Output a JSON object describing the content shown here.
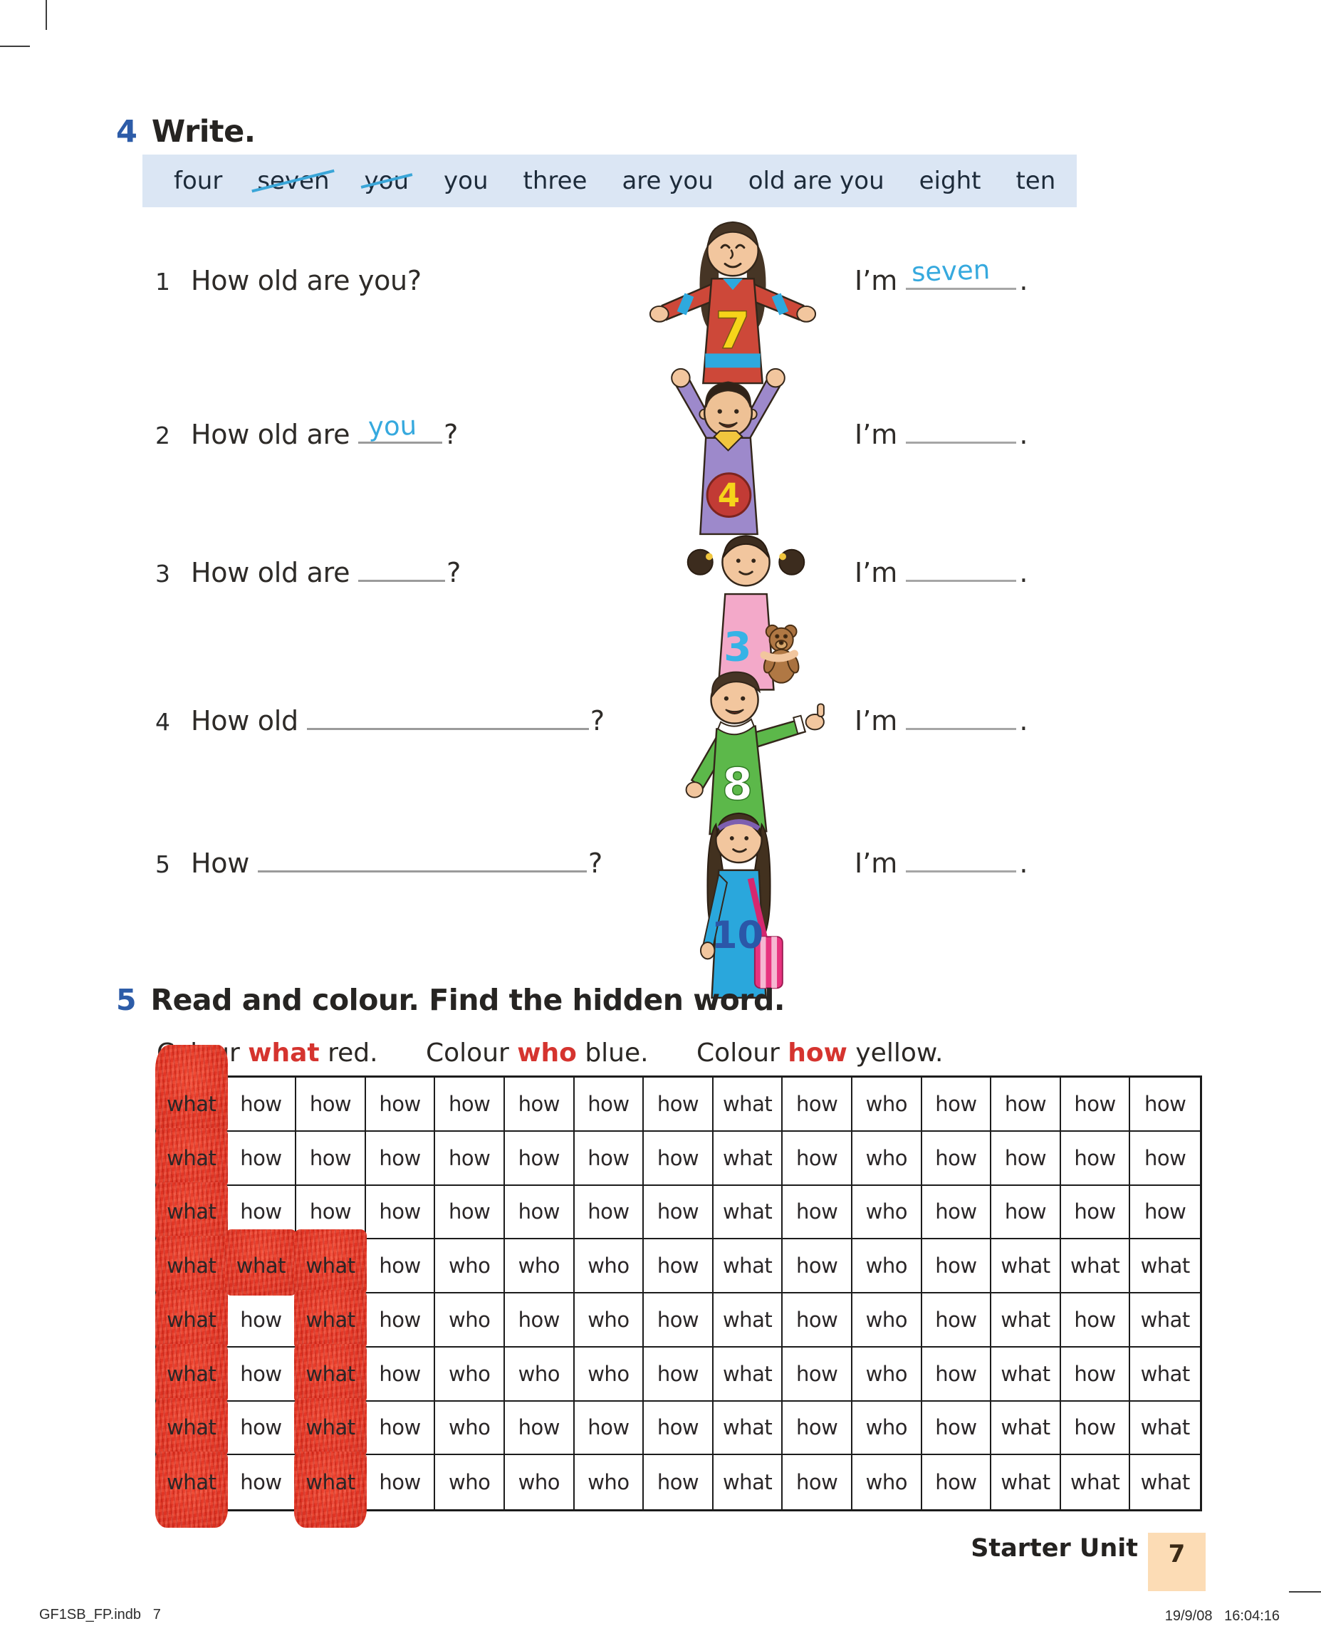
{
  "exercise4": {
    "number": "4",
    "title": "Write.",
    "word_bank": [
      {
        "text": "four",
        "struck": false
      },
      {
        "text": "seven",
        "struck": true
      },
      {
        "text": "you",
        "struck": true
      },
      {
        "text": "you",
        "struck": false
      },
      {
        "text": "three",
        "struck": false
      },
      {
        "text": "are you",
        "struck": false
      },
      {
        "text": "old are you",
        "struck": false
      },
      {
        "text": "eight",
        "struck": false
      },
      {
        "text": "ten",
        "struck": false
      }
    ],
    "answer_prefix": "I’m",
    "answer_period": ".",
    "questions": [
      {
        "num": "1",
        "before": "How old are you?",
        "gap_text": "",
        "after": "",
        "answer": "seven",
        "shirt_number": "7",
        "kid": "girl-red-jersey"
      },
      {
        "num": "2",
        "before": "How old are",
        "gap_text": "you",
        "after": "?",
        "answer": "",
        "shirt_number": "4",
        "kid": "boy-purple-shirt-arms-up"
      },
      {
        "num": "3",
        "before": "How old are",
        "gap_text": "",
        "after": "?",
        "answer": "",
        "shirt_number": "3",
        "kid": "girl-pink-shirt-teddy-bear"
      },
      {
        "num": "4",
        "before": "How old",
        "gap_text": "",
        "after": "?",
        "answer": "",
        "shirt_number": "8",
        "kid": "boy-green-shirt"
      },
      {
        "num": "5",
        "before": "How",
        "gap_text": "",
        "after": "?",
        "answer": "",
        "shirt_number": "10",
        "kid": "girl-blue-shirt-pink-bag"
      }
    ]
  },
  "exercise5": {
    "number": "5",
    "title": "Read and colour. Find the hidden word.",
    "instructions": [
      {
        "pre": "Colour ",
        "word": "what",
        "post": " red."
      },
      {
        "pre": "Colour ",
        "word": "who",
        "post": " blue."
      },
      {
        "pre": "Colour ",
        "word": "how",
        "post": " yellow."
      }
    ],
    "grid_rows": [
      [
        "what",
        "how",
        "how",
        "how",
        "how",
        "how",
        "how",
        "how",
        "what",
        "how",
        "who",
        "how",
        "how",
        "how",
        "how"
      ],
      [
        "what",
        "how",
        "how",
        "how",
        "how",
        "how",
        "how",
        "how",
        "what",
        "how",
        "who",
        "how",
        "how",
        "how",
        "how"
      ],
      [
        "what",
        "how",
        "how",
        "how",
        "how",
        "how",
        "how",
        "how",
        "what",
        "how",
        "who",
        "how",
        "how",
        "how",
        "how"
      ],
      [
        "what",
        "what",
        "what",
        "how",
        "who",
        "who",
        "who",
        "how",
        "what",
        "how",
        "who",
        "how",
        "what",
        "what",
        "what"
      ],
      [
        "what",
        "how",
        "what",
        "how",
        "who",
        "how",
        "who",
        "how",
        "what",
        "how",
        "who",
        "how",
        "what",
        "how",
        "what"
      ],
      [
        "what",
        "how",
        "what",
        "how",
        "who",
        "who",
        "who",
        "how",
        "what",
        "how",
        "who",
        "how",
        "what",
        "how",
        "what"
      ],
      [
        "what",
        "how",
        "what",
        "how",
        "who",
        "how",
        "how",
        "how",
        "what",
        "how",
        "who",
        "how",
        "what",
        "how",
        "what"
      ],
      [
        "what",
        "how",
        "what",
        "how",
        "who",
        "who",
        "who",
        "how",
        "what",
        "how",
        "who",
        "how",
        "what",
        "what",
        "what"
      ]
    ],
    "red_cells": [
      [
        0,
        0
      ],
      [
        1,
        0
      ],
      [
        2,
        0
      ],
      [
        3,
        0
      ],
      [
        3,
        1
      ],
      [
        3,
        2
      ],
      [
        4,
        0
      ],
      [
        4,
        2
      ],
      [
        5,
        0
      ],
      [
        5,
        2
      ],
      [
        6,
        0
      ],
      [
        6,
        2
      ],
      [
        7,
        0
      ],
      [
        7,
        2
      ]
    ]
  },
  "footer": {
    "section": "Starter Unit",
    "page": "7"
  },
  "print_info": {
    "left": "GF1SB_FP.indb   7",
    "right": "19/9/08   16:04:16"
  },
  "colors": {
    "accent_blue": "#2d5ca8",
    "handwriting_blue": "#36a9de",
    "instruction_red": "#d5342f",
    "crayon_red": "#e23424",
    "wordbank_bg": "#dbe6f4",
    "footer_box": "#fcdcb5"
  }
}
